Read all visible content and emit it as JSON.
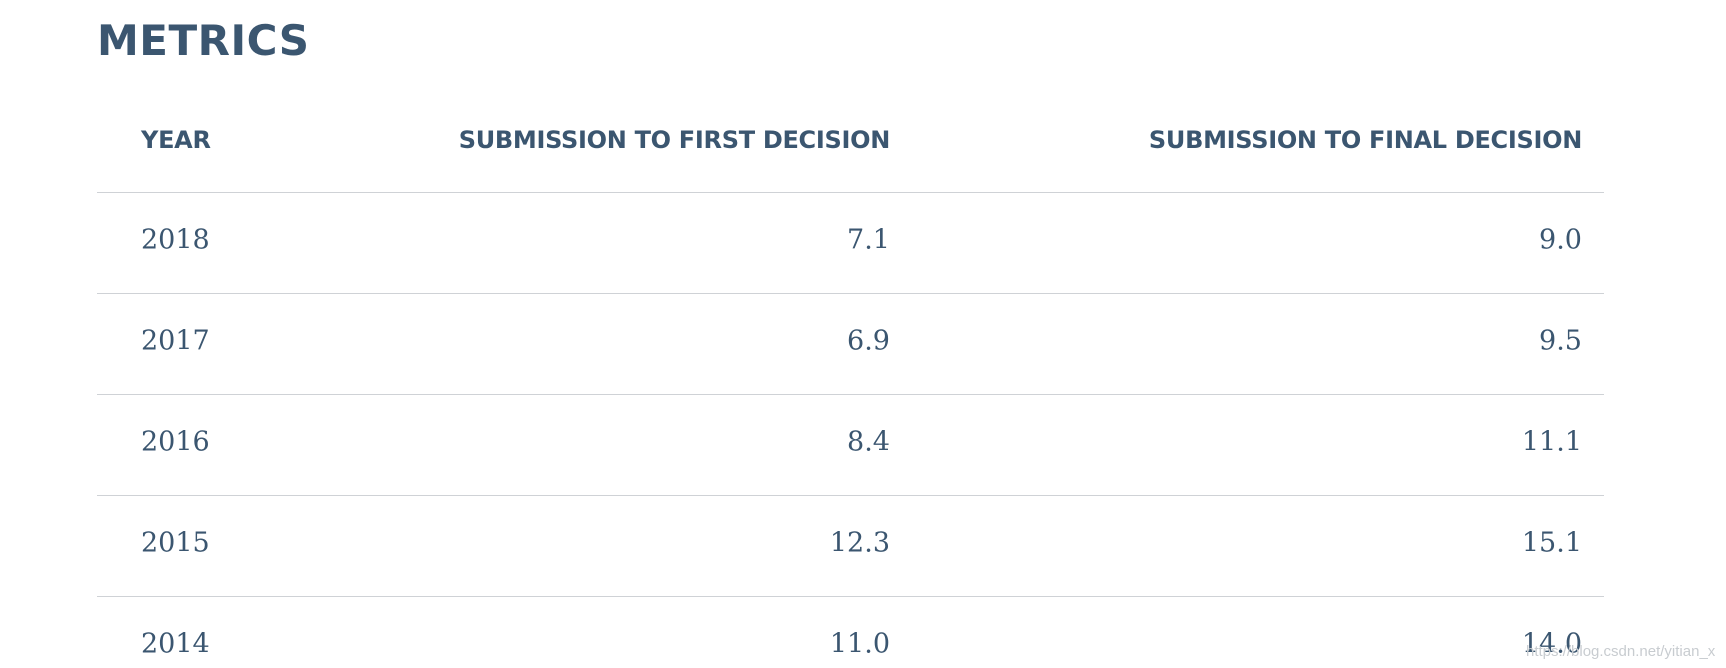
{
  "title": "METRICS",
  "table": {
    "headers": [
      "YEAR",
      "SUBMISSION TO FIRST DECISION",
      "SUBMISSION TO FINAL DECISION"
    ],
    "rows": [
      [
        "2018",
        "7.1",
        "9.0"
      ],
      [
        "2017",
        "6.9",
        "9.5"
      ],
      [
        "2016",
        "8.4",
        "11.1"
      ],
      [
        "2015",
        "12.3",
        "15.1"
      ],
      [
        "2014",
        "11.0",
        "14.0"
      ]
    ]
  },
  "watermark": "https://blog.csdn.net/yitian_x"
}
